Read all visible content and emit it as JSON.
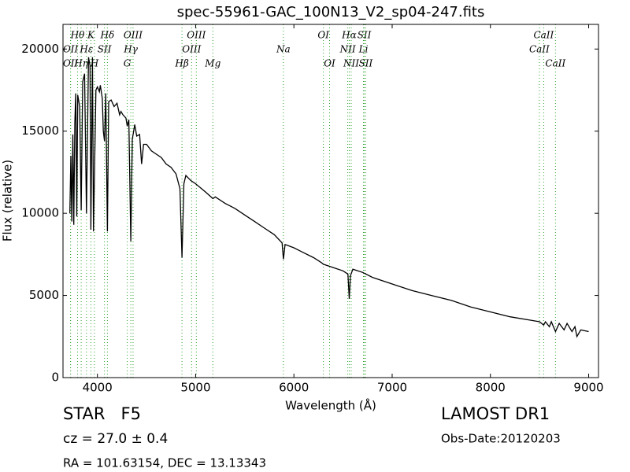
{
  "chart_data": {
    "type": "line",
    "title": "spec-55961-GAC_100N13_V2_sp04-247.fits",
    "x_label": "Wavelength (Å)",
    "y_label": "Flux (relative)",
    "xlim": [
      3650,
      9100
    ],
    "ylim": [
      0,
      21500
    ],
    "xticks": [
      4000,
      5000,
      6000,
      7000,
      8000,
      9000
    ],
    "yticks": [
      0,
      5000,
      10000,
      15000,
      20000
    ],
    "color": "#000000",
    "x": [
      3720,
      3730,
      3740,
      3750,
      3760,
      3770,
      3780,
      3790,
      3800,
      3820,
      3835,
      3850,
      3870,
      3889,
      3910,
      3925,
      3934,
      3950,
      3960,
      3985,
      4000,
      4020,
      4030,
      4050,
      4060,
      4072,
      4085,
      4102,
      4115,
      4140,
      4170,
      4200,
      4226,
      4240,
      4260,
      4290,
      4304,
      4320,
      4340,
      4355,
      4380,
      4400,
      4430,
      4450,
      4470,
      4500,
      4550,
      4600,
      4650,
      4700,
      4750,
      4800,
      4840,
      4861,
      4880,
      4900,
      4950,
      5000,
      5100,
      5175,
      5200,
      5300,
      5400,
      5500,
      5600,
      5700,
      5800,
      5880,
      5893,
      5910,
      6000,
      6100,
      6200,
      6280,
      6300,
      6350,
      6400,
      6500,
      6550,
      6563,
      6575,
      6600,
      6700,
      6800,
      7000,
      7200,
      7400,
      7600,
      7650,
      7700,
      7800,
      8000,
      8200,
      8400,
      8500,
      8542,
      8560,
      8600,
      8620,
      8662,
      8700,
      8750,
      8780,
      8830,
      8860,
      8880,
      8920,
      9000
    ],
    "values": [
      10000,
      13500,
      9500,
      14800,
      9300,
      15500,
      17300,
      9800,
      17200,
      16500,
      10200,
      18000,
      18500,
      10000,
      19500,
      19000,
      9000,
      19500,
      8900,
      17500,
      17700,
      17400,
      17800,
      17000,
      15000,
      14400,
      17300,
      8900,
      16800,
      16900,
      16500,
      16700,
      16000,
      16200,
      16000,
      15800,
      15300,
      15700,
      8300,
      14500,
      15400,
      14700,
      14800,
      13000,
      14200,
      14200,
      13800,
      13600,
      13400,
      13000,
      12800,
      12400,
      11500,
      7300,
      11800,
      12300,
      12000,
      11800,
      11300,
      10900,
      11000,
      10600,
      10300,
      9900,
      9500,
      9100,
      8700,
      8200,
      7200,
      8100,
      7900,
      7600,
      7300,
      7000,
      6900,
      6800,
      6700,
      6500,
      6300,
      4800,
      6200,
      6600,
      6400,
      6100,
      5700,
      5300,
      5000,
      4700,
      4600,
      4500,
      4300,
      4000,
      3700,
      3500,
      3400,
      3200,
      3400,
      3100,
      3400,
      2800,
      3300,
      2900,
      3300,
      2800,
      3100,
      2500,
      2900,
      2800
    ],
    "line_color": "#2ca02c",
    "annotations": [
      {
        "label": "OII",
        "x": 3727,
        "row": 1
      },
      {
        "label": "OII",
        "x": 3727,
        "row": 2
      },
      {
        "label": "Hθ",
        "x": 3798,
        "row": 0
      },
      {
        "label": "Hη",
        "x": 3835,
        "row": 2
      },
      {
        "label": "Hε",
        "x": 3889,
        "row": 1
      },
      {
        "label": "K",
        "x": 3934,
        "row": 0
      },
      {
        "label": "H",
        "x": 3970,
        "row": 2
      },
      {
        "label": "SII",
        "x": 4072,
        "row": 1
      },
      {
        "label": "Hδ",
        "x": 4102,
        "row": 0
      },
      {
        "label": "G",
        "x": 4304,
        "row": 2
      },
      {
        "label": "Hγ",
        "x": 4340,
        "row": 1
      },
      {
        "label": "OIII",
        "x": 4363,
        "row": 0
      },
      {
        "label": "Hβ",
        "x": 4861,
        "row": 2
      },
      {
        "label": "OIII",
        "x": 4959,
        "row": 1
      },
      {
        "label": "OIII",
        "x": 5007,
        "row": 0
      },
      {
        "label": "Mg",
        "x": 5175,
        "row": 2
      },
      {
        "label": "Na",
        "x": 5893,
        "row": 1
      },
      {
        "label": "OI",
        "x": 6300,
        "row": 0
      },
      {
        "label": "OI",
        "x": 6363,
        "row": 2
      },
      {
        "label": "NII",
        "x": 6548,
        "row": 1
      },
      {
        "label": "Hα",
        "x": 6563,
        "row": 0
      },
      {
        "label": "NII",
        "x": 6583,
        "row": 2
      },
      {
        "label": "Li",
        "x": 6708,
        "row": 1
      },
      {
        "label": "SII",
        "x": 6716,
        "row": 0
      },
      {
        "label": "SII",
        "x": 6731,
        "row": 2
      },
      {
        "label": "CaII",
        "x": 8498,
        "row": 1
      },
      {
        "label": "CaII",
        "x": 8542,
        "row": 0
      },
      {
        "label": "CaII",
        "x": 8662,
        "row": 2
      }
    ],
    "notes": {
      "star": "STAR   F5",
      "cz": "cz = 27.0 ± 0.4",
      "radec": "RA = 101.63154, DEC = 13.13343",
      "survey": "LAMOST DR1",
      "date": "Obs-Date:20120203"
    }
  }
}
